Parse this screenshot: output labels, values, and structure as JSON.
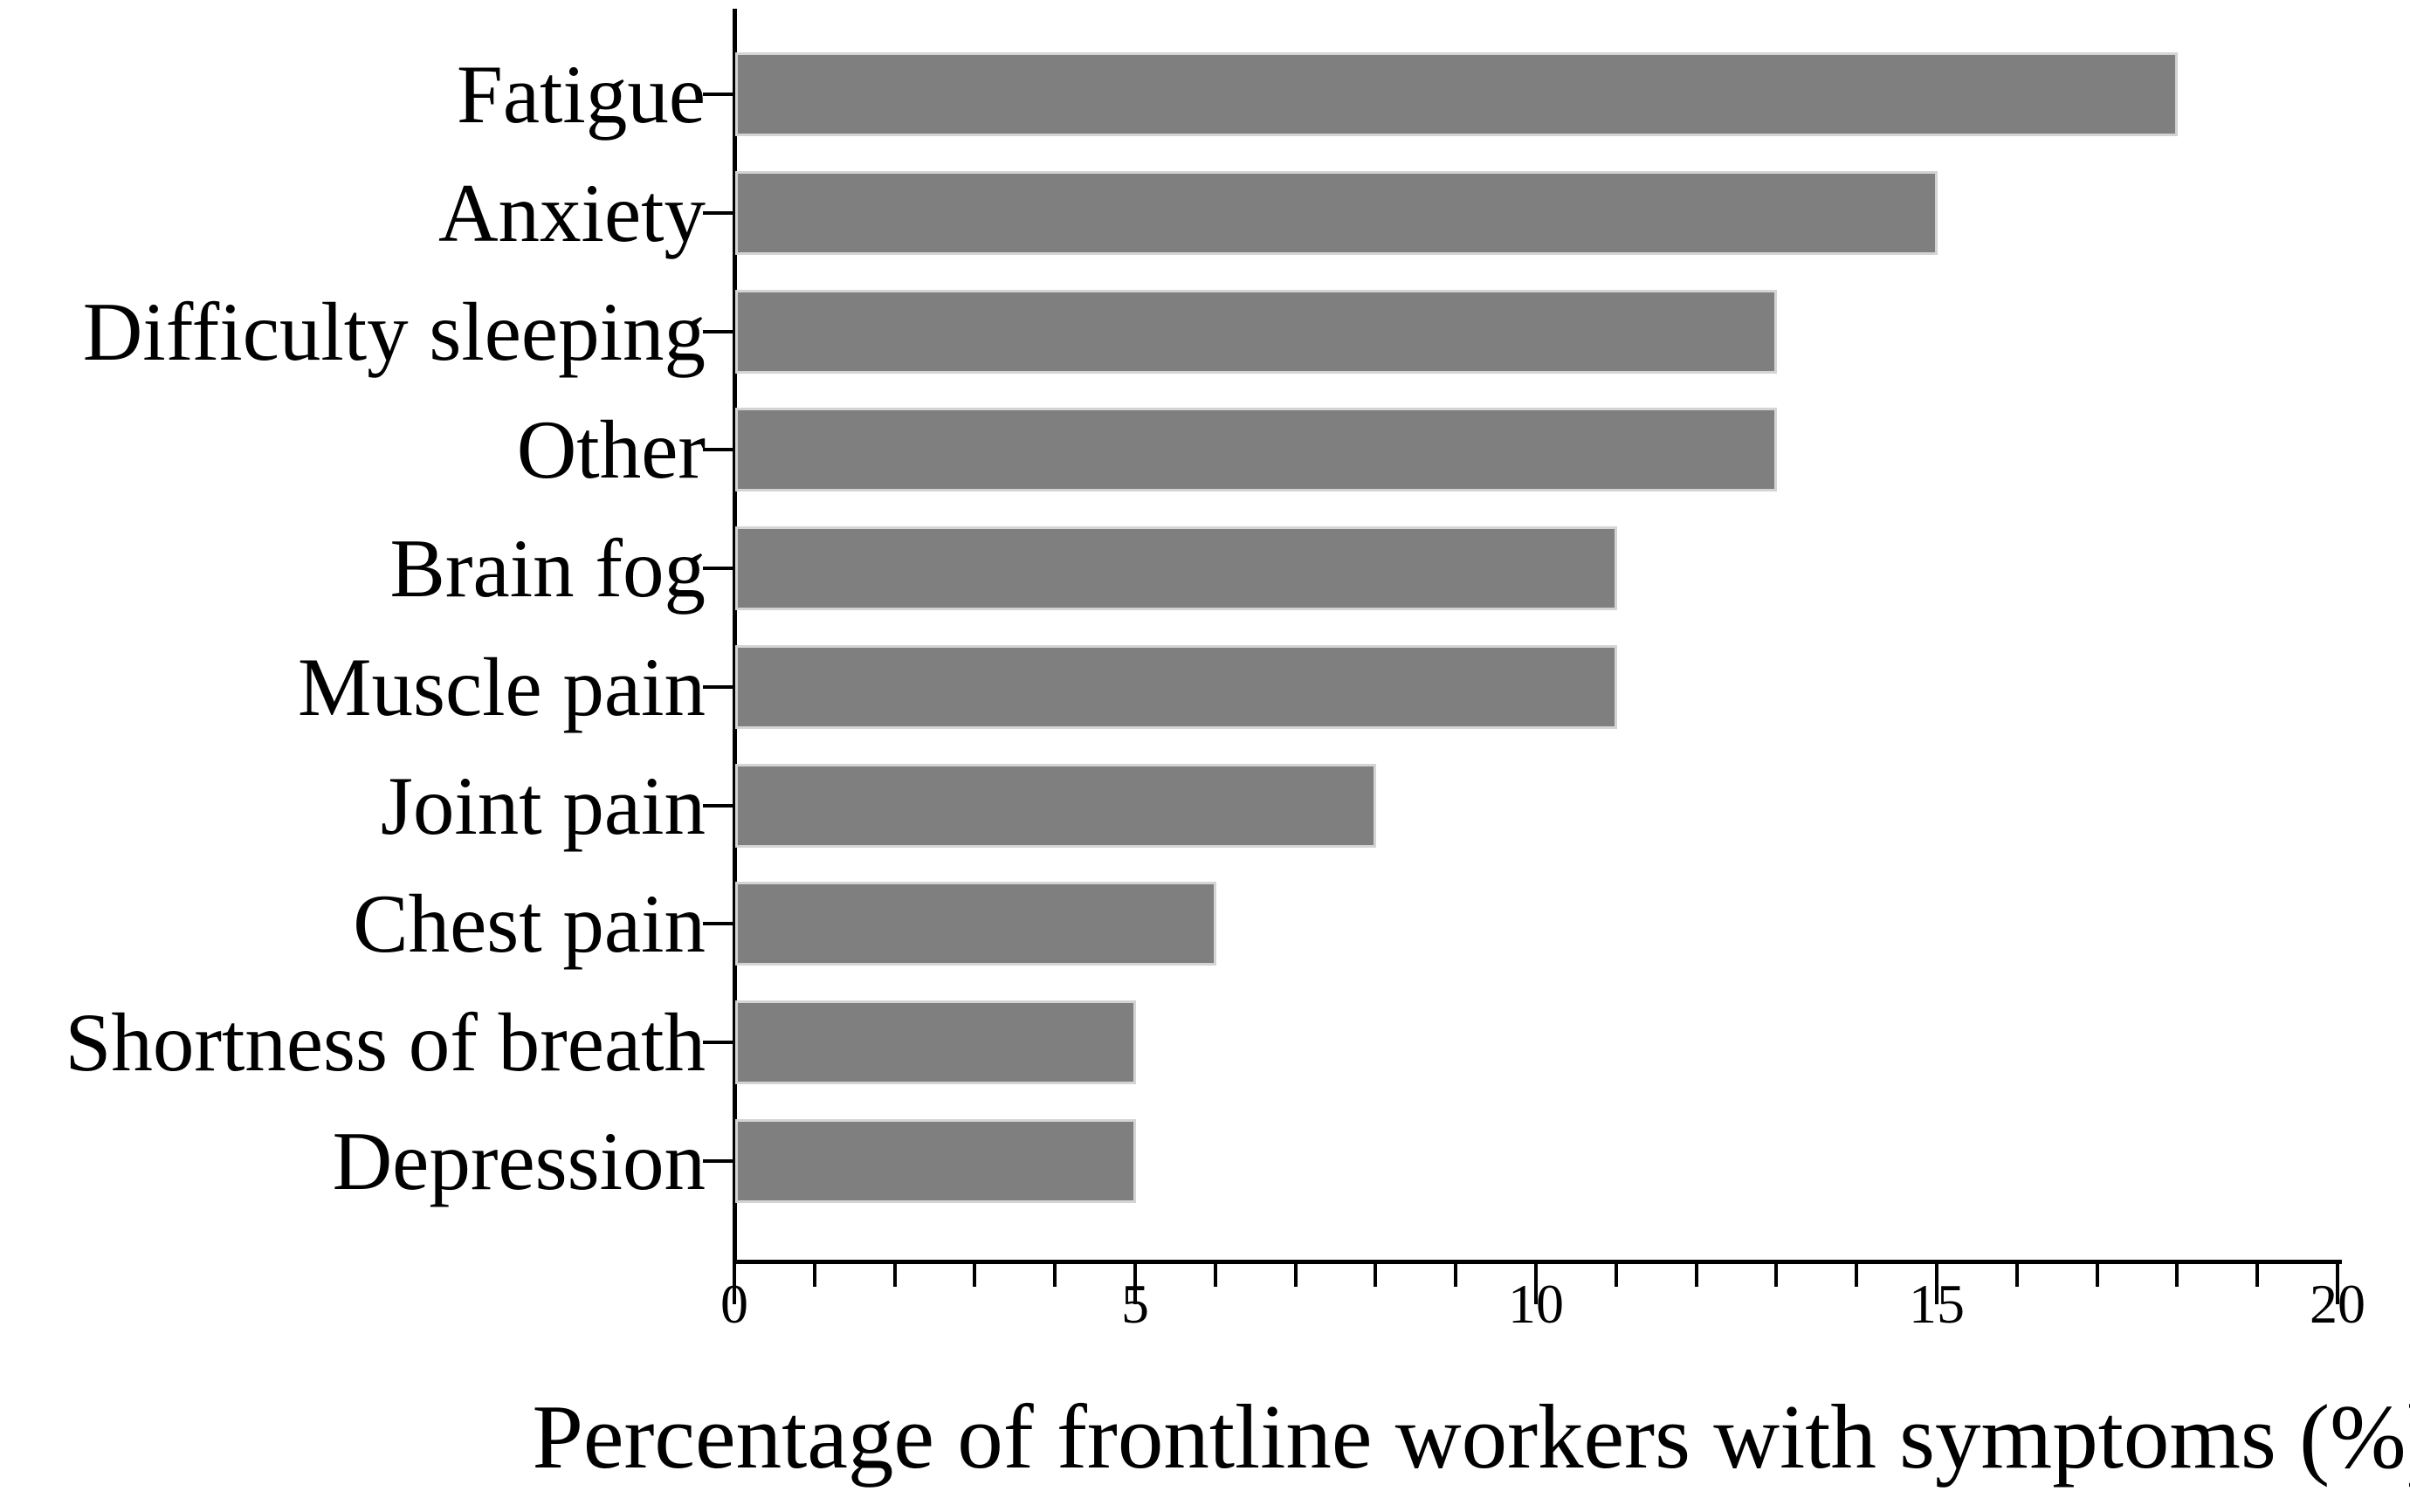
{
  "figure": {
    "background_color": "#ffffff",
    "text_color": "#000000",
    "axis_color": "#000000"
  },
  "chart_data": {
    "type": "bar",
    "orientation": "horizontal",
    "title": "",
    "xlabel": "Percentage of frontline workers with symptoms (%)",
    "ylabel": "",
    "categories": [
      "Fatigue",
      "Anxiety",
      "Difficulty sleeping",
      "Other",
      "Brain fog",
      "Muscle pain",
      "Joint pain",
      "Chest pain",
      "Shortness of breath",
      "Depression"
    ],
    "values": [
      18,
      15,
      13,
      13,
      11,
      11,
      8,
      6,
      5,
      5
    ],
    "xlim": [
      0,
      20
    ],
    "x_major_ticks": [
      0,
      5,
      10,
      15,
      20
    ],
    "x_major_tick_labels": [
      "0",
      "5",
      "10",
      "15",
      "20"
    ],
    "x_minor_tick_step": 1,
    "grid": false,
    "legend": null,
    "bar_color": "#7f7f7f",
    "bar_edge_color": "#d4d4d4"
  }
}
